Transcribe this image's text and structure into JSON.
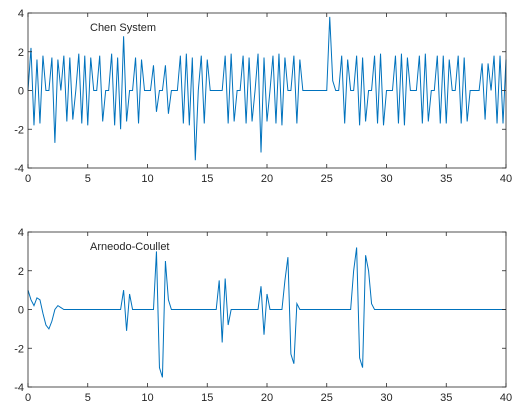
{
  "chart_data": [
    {
      "type": "line",
      "annotation": "Chen System",
      "color": "#0072bd",
      "x": [
        0,
        0.25,
        0.5,
        0.75,
        1,
        1.25,
        1.5,
        1.75,
        2,
        2.25,
        2.5,
        2.75,
        3,
        3.25,
        3.5,
        3.75,
        4,
        4.25,
        4.5,
        4.75,
        5,
        5.25,
        5.5,
        5.75,
        6,
        6.25,
        6.5,
        6.75,
        7,
        7.25,
        7.5,
        7.75,
        8,
        8.25,
        8.5,
        8.75,
        9,
        9.25,
        9.5,
        9.75,
        10,
        10.25,
        10.5,
        10.75,
        11,
        11.25,
        11.5,
        11.75,
        12,
        12.25,
        12.5,
        12.75,
        13,
        13.25,
        13.5,
        13.75,
        14,
        14.25,
        14.5,
        14.75,
        15,
        15.25,
        15.5,
        15.75,
        16,
        16.25,
        16.5,
        16.75,
        17,
        17.25,
        17.5,
        17.75,
        18,
        18.25,
        18.5,
        18.75,
        19,
        19.25,
        19.5,
        19.75,
        20,
        20.25,
        20.5,
        20.75,
        21,
        21.25,
        21.5,
        21.75,
        22,
        22.25,
        22.5,
        22.75,
        23,
        23.25,
        23.5,
        23.75,
        24,
        24.25,
        24.5,
        24.75,
        25,
        25.25,
        25.5,
        25.75,
        26,
        26.25,
        26.5,
        26.75,
        27,
        27.25,
        27.5,
        27.75,
        28,
        28.25,
        28.5,
        28.75,
        29,
        29.25,
        29.5,
        29.75,
        30,
        30.25,
        30.5,
        30.75,
        31,
        31.25,
        31.5,
        31.75,
        32,
        32.25,
        32.5,
        32.75,
        33,
        33.25,
        33.5,
        33.75,
        34,
        34.25,
        34.5,
        34.75,
        35,
        35.25,
        35.5,
        35.75,
        36,
        36.25,
        36.5,
        36.75,
        37,
        37.25,
        37.5,
        37.75,
        38,
        38.25,
        38.5,
        38.75,
        39,
        39.25,
        39.5,
        39.75,
        40
      ],
      "values": [
        0,
        2.2,
        -1.8,
        1.6,
        -1.7,
        1.8,
        0,
        0,
        1.7,
        -2.7,
        1.6,
        0,
        1.8,
        -1.6,
        1.7,
        -1.5,
        0,
        1.9,
        -1.7,
        1.8,
        -1.8,
        1.7,
        0,
        0,
        1.8,
        -1.6,
        0,
        0,
        1.9,
        -1.8,
        1.7,
        -2.0,
        2.8,
        -1.6,
        0,
        0,
        1.7,
        -1.7,
        1.6,
        0,
        0,
        0,
        1.3,
        -1.1,
        0,
        0,
        1.3,
        -1.2,
        0,
        0,
        0,
        1.8,
        -1.7,
        1.9,
        -1.8,
        1.7,
        -3.6,
        0,
        1.8,
        -1.7,
        1.6,
        0,
        0,
        0,
        0,
        0,
        1.8,
        -1.7,
        1.9,
        -1.6,
        0,
        0,
        1.8,
        -1.7,
        1.7,
        -1.6,
        0,
        1.9,
        -3.2,
        1.7,
        -1.6,
        0,
        1.8,
        -1.7,
        1.9,
        -1.8,
        1.7,
        0,
        0,
        1.8,
        -1.7,
        1.6,
        0,
        0,
        0,
        0,
        0,
        0,
        0,
        0,
        0,
        3.8,
        0.5,
        0,
        0,
        1.8,
        -1.7,
        1.6,
        0,
        0,
        1.8,
        -1.8,
        1.7,
        -1.6,
        0,
        0,
        1.8,
        -1.7,
        1.9,
        -1.8,
        0,
        0,
        0,
        1.8,
        -1.7,
        1.9,
        -1.8,
        1.7,
        0,
        0,
        0,
        1.8,
        -1.7,
        1.9,
        -1.6,
        0,
        0,
        1.8,
        -1.7,
        1.8,
        -1.7,
        1.6,
        0,
        0,
        1.8,
        -1.7,
        1.7,
        -1.6,
        0,
        0,
        0,
        0,
        1.4,
        -1.5,
        1.4,
        0,
        1.8,
        -1.7,
        1.8,
        -1.7,
        1.6
      ],
      "xlim": [
        0,
        40
      ],
      "xticks": [
        0,
        5,
        10,
        15,
        20,
        25,
        30,
        35,
        40
      ],
      "ylim": [
        -4,
        4
      ],
      "yticks": [
        -4,
        -2,
        0,
        2,
        4
      ]
    },
    {
      "type": "line",
      "annotation": "Arneodo-Coullet",
      "color": "#0072bd",
      "x": [
        0,
        0.25,
        0.5,
        0.75,
        1,
        1.25,
        1.5,
        1.75,
        2,
        2.25,
        2.5,
        2.75,
        3,
        7.75,
        8,
        8.25,
        8.5,
        8.75,
        10.5,
        10.75,
        11,
        11.25,
        11.5,
        11.75,
        12,
        15.75,
        16,
        16.25,
        16.5,
        16.75,
        17,
        19.25,
        19.5,
        19.75,
        20,
        20.25,
        21.25,
        21.5,
        21.75,
        22,
        22.25,
        22.5,
        22.75,
        27,
        27.25,
        27.5,
        27.75,
        28,
        28.25,
        28.5,
        28.75,
        29,
        40
      ],
      "values": [
        1.0,
        0.5,
        0.2,
        0.6,
        0.5,
        -0.2,
        -0.8,
        -1.0,
        -0.6,
        0,
        0.2,
        0.1,
        0,
        0,
        1.0,
        -1.1,
        0.8,
        0,
        0,
        3.0,
        -3.0,
        -3.5,
        2.5,
        0.5,
        0,
        0,
        1.5,
        -1.7,
        1.6,
        -0.8,
        0,
        0,
        1.2,
        -1.3,
        0.8,
        0,
        0,
        1.5,
        2.7,
        -2.3,
        -2.8,
        0.3,
        0,
        0,
        2.0,
        3.2,
        -2.5,
        -3.0,
        2.8,
        2.0,
        0.3,
        0,
        0
      ],
      "xlim": [
        0,
        40
      ],
      "xticks": [
        0,
        5,
        10,
        15,
        20,
        25,
        30,
        35,
        40
      ],
      "ylim": [
        -4,
        4
      ],
      "yticks": [
        -4,
        -2,
        0,
        2,
        4
      ]
    }
  ]
}
